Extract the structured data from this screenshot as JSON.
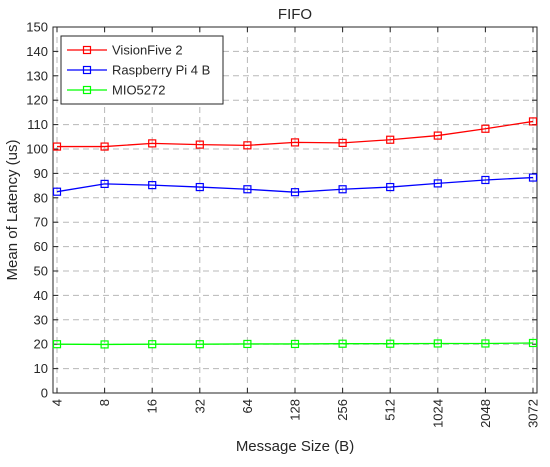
{
  "chart_data": {
    "type": "line",
    "title": "FIFO",
    "xlabel": "Message Size (B)",
    "ylabel": "Mean of Latency (us)",
    "categories": [
      "4",
      "8",
      "16",
      "32",
      "64",
      "128",
      "256",
      "512",
      "1024",
      "2048",
      "3072"
    ],
    "ylim": [
      0,
      150
    ],
    "yticks": [
      0,
      10,
      20,
      30,
      40,
      50,
      60,
      70,
      80,
      90,
      100,
      110,
      120,
      130,
      140,
      150
    ],
    "grid": true,
    "legend_position": "top-left",
    "marker": "square",
    "series": [
      {
        "name": "VisionFive 2",
        "color": "#ff0000",
        "values": [
          101,
          101,
          102.3,
          101.8,
          101.5,
          102.7,
          102.5,
          103.8,
          105.5,
          108.3,
          111.3
        ]
      },
      {
        "name": "Raspberry Pi 4 B",
        "color": "#0000ff",
        "values": [
          82.5,
          85.7,
          85.2,
          84.4,
          83.5,
          82.3,
          83.5,
          84.4,
          85.9,
          87.3,
          88.3
        ]
      },
      {
        "name": "MIO5272",
        "color": "#00ff00",
        "values": [
          20,
          19.9,
          20,
          20,
          20.1,
          20.1,
          20.2,
          20.2,
          20.3,
          20.3,
          20.5
        ]
      }
    ]
  }
}
